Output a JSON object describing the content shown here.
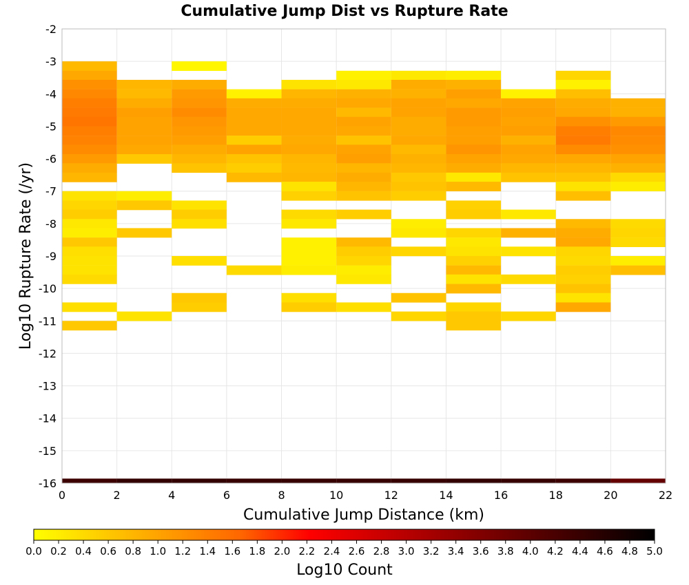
{
  "chart_data": {
    "type": "heatmap",
    "title": "Cumulative Jump Dist vs Rupture Rate",
    "xlabel": "Cumulative Jump Distance (km)",
    "ylabel": "Log10 Rupture Rate (/yr)",
    "xlim": [
      0,
      22
    ],
    "ylim": [
      -16,
      -2
    ],
    "x_ticks": [
      "0",
      "2",
      "4",
      "6",
      "8",
      "10",
      "12",
      "14",
      "16",
      "18",
      "20",
      "22"
    ],
    "y_ticks": [
      "-2",
      "-3",
      "-4",
      "-5",
      "-6",
      "-7",
      "-8",
      "-9",
      "-10",
      "-11",
      "-12",
      "-13",
      "-14",
      "-15",
      "-16"
    ],
    "bin_width_x": 2,
    "bin_height_y": 0.286,
    "colorbar": {
      "label": "Log10 Count",
      "range": [
        0,
        5
      ],
      "ticks": [
        "0.0",
        "0.2",
        "0.4",
        "0.6",
        "0.8",
        "1.0",
        "1.2",
        "1.4",
        "1.6",
        "1.8",
        "2.0",
        "2.2",
        "2.4",
        "2.6",
        "2.8",
        "3.0",
        "3.2",
        "3.4",
        "3.6",
        "3.8",
        "4.0",
        "4.2",
        "4.4",
        "4.6",
        "4.8",
        "5.0"
      ],
      "colormap": [
        "#ffff00",
        "#ffcc00",
        "#ff9900",
        "#ff6600",
        "#ff0000",
        "#cc0000",
        "#990000",
        "#660000",
        "#330000",
        "#000000"
      ]
    },
    "columns": [
      {
        "x0": 0,
        "rows": [
          {
            "y": -3.0,
            "v": 0.75
          },
          {
            "y": -3.29,
            "v": 0.95
          },
          {
            "y": -3.57,
            "v": 1.2
          },
          {
            "y": -3.86,
            "v": 1.3
          },
          {
            "y": -4.14,
            "v": 1.4
          },
          {
            "y": -4.43,
            "v": 1.45
          },
          {
            "y": -4.71,
            "v": 1.5
          },
          {
            "y": -5.0,
            "v": 1.4
          },
          {
            "y": -5.29,
            "v": 1.35
          },
          {
            "y": -5.57,
            "v": 1.25
          },
          {
            "y": -5.86,
            "v": 1.1
          },
          {
            "y": -6.14,
            "v": 0.9
          },
          {
            "y": -6.43,
            "v": 0.8
          },
          {
            "y": -7.0,
            "v": 0.3
          },
          {
            "y": -7.29,
            "v": 0.45
          },
          {
            "y": -7.57,
            "v": 0.55
          },
          {
            "y": -7.86,
            "v": 0.25
          },
          {
            "y": -8.14,
            "v": 0.2
          },
          {
            "y": -8.43,
            "v": 0.6
          },
          {
            "y": -8.71,
            "v": 0.35
          },
          {
            "y": -9.0,
            "v": 0.3
          },
          {
            "y": -9.29,
            "v": 0.3
          },
          {
            "y": -9.57,
            "v": 0.4
          },
          {
            "y": -10.43,
            "v": 0.35
          },
          {
            "y": -11.0,
            "v": 0.6
          }
        ]
      },
      {
        "x0": 2,
        "rows": [
          {
            "y": -3.57,
            "v": 0.8
          },
          {
            "y": -3.86,
            "v": 0.75
          },
          {
            "y": -4.14,
            "v": 0.9
          },
          {
            "y": -4.43,
            "v": 1.05
          },
          {
            "y": -4.71,
            "v": 1.0
          },
          {
            "y": -5.0,
            "v": 1.0
          },
          {
            "y": -5.29,
            "v": 1.0
          },
          {
            "y": -5.57,
            "v": 0.95
          },
          {
            "y": -5.86,
            "v": 0.6
          },
          {
            "y": -7.0,
            "v": 0.2
          },
          {
            "y": -7.29,
            "v": 0.6
          },
          {
            "y": -8.14,
            "v": 0.6
          },
          {
            "y": -10.71,
            "v": 0.3
          }
        ]
      },
      {
        "x0": 4,
        "rows": [
          {
            "y": -3.0,
            "v": 0.1
          },
          {
            "y": -3.57,
            "v": 0.9
          },
          {
            "y": -3.86,
            "v": 1.1
          },
          {
            "y": -4.14,
            "v": 1.15
          },
          {
            "y": -4.43,
            "v": 1.25
          },
          {
            "y": -4.71,
            "v": 1.15
          },
          {
            "y": -5.0,
            "v": 1.1
          },
          {
            "y": -5.29,
            "v": 1.05
          },
          {
            "y": -5.57,
            "v": 0.9
          },
          {
            "y": -5.86,
            "v": 0.8
          },
          {
            "y": -6.14,
            "v": 0.65
          },
          {
            "y": -7.29,
            "v": 0.3
          },
          {
            "y": -7.57,
            "v": 0.55
          },
          {
            "y": -7.86,
            "v": 0.35
          },
          {
            "y": -9.0,
            "v": 0.35
          },
          {
            "y": -10.14,
            "v": 0.6
          },
          {
            "y": -10.43,
            "v": 0.55
          }
        ]
      },
      {
        "x0": 6,
        "rows": [
          {
            "y": -3.86,
            "v": 0.15
          },
          {
            "y": -4.14,
            "v": 0.9
          },
          {
            "y": -4.43,
            "v": 0.95
          },
          {
            "y": -4.71,
            "v": 0.95
          },
          {
            "y": -5.0,
            "v": 0.95
          },
          {
            "y": -5.29,
            "v": 0.55
          },
          {
            "y": -5.57,
            "v": 1.0
          },
          {
            "y": -5.86,
            "v": 0.65
          },
          {
            "y": -6.14,
            "v": 0.55
          },
          {
            "y": -6.43,
            "v": 0.75
          },
          {
            "y": -9.29,
            "v": 0.4
          }
        ]
      },
      {
        "x0": 8,
        "rows": [
          {
            "y": -3.57,
            "v": 0.3
          },
          {
            "y": -3.86,
            "v": 0.8
          },
          {
            "y": -4.14,
            "v": 0.9
          },
          {
            "y": -4.43,
            "v": 0.95
          },
          {
            "y": -4.71,
            "v": 0.95
          },
          {
            "y": -5.0,
            "v": 0.95
          },
          {
            "y": -5.29,
            "v": 0.9
          },
          {
            "y": -5.57,
            "v": 0.95
          },
          {
            "y": -5.86,
            "v": 0.8
          },
          {
            "y": -6.14,
            "v": 0.75
          },
          {
            "y": -6.43,
            "v": 0.8
          },
          {
            "y": -6.71,
            "v": 0.3
          },
          {
            "y": -7.0,
            "v": 0.5
          },
          {
            "y": -7.57,
            "v": 0.4
          },
          {
            "y": -7.86,
            "v": 0.25
          },
          {
            "y": -8.43,
            "v": 0.15
          },
          {
            "y": -8.71,
            "v": 0.15
          },
          {
            "y": -9.0,
            "v": 0.15
          },
          {
            "y": -9.29,
            "v": 0.2
          },
          {
            "y": -10.14,
            "v": 0.35
          },
          {
            "y": -10.43,
            "v": 0.55
          }
        ]
      },
      {
        "x0": 10,
        "rows": [
          {
            "y": -3.29,
            "v": 0.15
          },
          {
            "y": -3.57,
            "v": 0.25
          },
          {
            "y": -3.86,
            "v": 0.85
          },
          {
            "y": -4.14,
            "v": 0.95
          },
          {
            "y": -4.43,
            "v": 0.75
          },
          {
            "y": -4.71,
            "v": 1.0
          },
          {
            "y": -5.0,
            "v": 0.95
          },
          {
            "y": -5.29,
            "v": 0.65
          },
          {
            "y": -5.57,
            "v": 1.0
          },
          {
            "y": -5.86,
            "v": 1.05
          },
          {
            "y": -6.14,
            "v": 0.8
          },
          {
            "y": -6.43,
            "v": 0.9
          },
          {
            "y": -6.71,
            "v": 0.8
          },
          {
            "y": -7.0,
            "v": 0.65
          },
          {
            "y": -7.57,
            "v": 0.55
          },
          {
            "y": -8.43,
            "v": 0.75
          },
          {
            "y": -8.71,
            "v": 0.55
          },
          {
            "y": -9.0,
            "v": 0.45
          },
          {
            "y": -9.29,
            "v": 0.2
          },
          {
            "y": -9.57,
            "v": 0.25
          },
          {
            "y": -10.43,
            "v": 0.35
          }
        ]
      },
      {
        "x0": 12,
        "rows": [
          {
            "y": -3.29,
            "v": 0.25
          },
          {
            "y": -3.57,
            "v": 0.9
          },
          {
            "y": -3.86,
            "v": 0.85
          },
          {
            "y": -4.14,
            "v": 1.0
          },
          {
            "y": -4.43,
            "v": 1.0
          },
          {
            "y": -4.71,
            "v": 0.9
          },
          {
            "y": -5.0,
            "v": 0.9
          },
          {
            "y": -5.29,
            "v": 0.95
          },
          {
            "y": -5.57,
            "v": 0.75
          },
          {
            "y": -5.86,
            "v": 0.85
          },
          {
            "y": -6.14,
            "v": 0.8
          },
          {
            "y": -6.43,
            "v": 0.6
          },
          {
            "y": -6.71,
            "v": 0.65
          },
          {
            "y": -7.0,
            "v": 0.55
          },
          {
            "y": -7.86,
            "v": 0.2
          },
          {
            "y": -8.14,
            "v": 0.25
          },
          {
            "y": -8.71,
            "v": 0.45
          },
          {
            "y": -10.14,
            "v": 0.65
          },
          {
            "y": -10.71,
            "v": 0.45
          }
        ]
      },
      {
        "x0": 14,
        "rows": [
          {
            "y": -3.29,
            "v": 0.2
          },
          {
            "y": -3.57,
            "v": 0.85
          },
          {
            "y": -3.86,
            "v": 1.05
          },
          {
            "y": -4.14,
            "v": 0.95
          },
          {
            "y": -4.43,
            "v": 1.1
          },
          {
            "y": -4.71,
            "v": 1.1
          },
          {
            "y": -5.0,
            "v": 1.05
          },
          {
            "y": -5.29,
            "v": 1.05
          },
          {
            "y": -5.57,
            "v": 1.15
          },
          {
            "y": -5.86,
            "v": 1.0
          },
          {
            "y": -6.14,
            "v": 0.9
          },
          {
            "y": -6.43,
            "v": 0.25
          },
          {
            "y": -6.71,
            "v": 0.75
          },
          {
            "y": -7.29,
            "v": 0.5
          },
          {
            "y": -7.57,
            "v": 0.55
          },
          {
            "y": -8.14,
            "v": 0.45
          },
          {
            "y": -8.43,
            "v": 0.25
          },
          {
            "y": -8.71,
            "v": 0.3
          },
          {
            "y": -9.0,
            "v": 0.5
          },
          {
            "y": -9.29,
            "v": 0.75
          },
          {
            "y": -9.57,
            "v": 0.3
          },
          {
            "y": -9.86,
            "v": 0.75
          },
          {
            "y": -10.43,
            "v": 0.45
          },
          {
            "y": -10.71,
            "v": 0.6
          },
          {
            "y": -11.0,
            "v": 0.6
          }
        ]
      },
      {
        "x0": 16,
        "rows": [
          {
            "y": -3.86,
            "v": 0.15
          },
          {
            "y": -4.14,
            "v": 1.0
          },
          {
            "y": -4.43,
            "v": 1.05
          },
          {
            "y": -4.71,
            "v": 1.0
          },
          {
            "y": -5.0,
            "v": 1.05
          },
          {
            "y": -5.29,
            "v": 0.85
          },
          {
            "y": -5.57,
            "v": 1.0
          },
          {
            "y": -5.86,
            "v": 0.95
          },
          {
            "y": -6.14,
            "v": 0.8
          },
          {
            "y": -6.43,
            "v": 0.65
          },
          {
            "y": -7.57,
            "v": 0.25
          },
          {
            "y": -8.14,
            "v": 0.85
          },
          {
            "y": -8.71,
            "v": 0.3
          },
          {
            "y": -9.57,
            "v": 0.4
          },
          {
            "y": -10.71,
            "v": 0.45
          }
        ]
      },
      {
        "x0": 18,
        "rows": [
          {
            "y": -3.29,
            "v": 0.45
          },
          {
            "y": -3.57,
            "v": 0.15
          },
          {
            "y": -3.86,
            "v": 0.7
          },
          {
            "y": -4.14,
            "v": 0.9
          },
          {
            "y": -4.43,
            "v": 0.95
          },
          {
            "y": -4.71,
            "v": 1.2
          },
          {
            "y": -5.0,
            "v": 1.4
          },
          {
            "y": -5.29,
            "v": 1.45
          },
          {
            "y": -5.57,
            "v": 1.25
          },
          {
            "y": -5.86,
            "v": 0.95
          },
          {
            "y": -6.14,
            "v": 0.8
          },
          {
            "y": -6.43,
            "v": 0.65
          },
          {
            "y": -6.71,
            "v": 0.3
          },
          {
            "y": -7.0,
            "v": 0.7
          },
          {
            "y": -7.86,
            "v": 0.75
          },
          {
            "y": -8.14,
            "v": 0.9
          },
          {
            "y": -8.43,
            "v": 0.95
          },
          {
            "y": -8.71,
            "v": 0.45
          },
          {
            "y": -9.0,
            "v": 0.4
          },
          {
            "y": -9.29,
            "v": 0.55
          },
          {
            "y": -9.57,
            "v": 0.5
          },
          {
            "y": -9.86,
            "v": 0.65
          },
          {
            "y": -10.14,
            "v": 0.3
          },
          {
            "y": -10.43,
            "v": 0.95
          }
        ]
      },
      {
        "x0": 20,
        "rows": [
          {
            "y": -4.14,
            "v": 0.85
          },
          {
            "y": -4.43,
            "v": 0.85
          },
          {
            "y": -4.71,
            "v": 1.1
          },
          {
            "y": -5.0,
            "v": 1.3
          },
          {
            "y": -5.29,
            "v": 1.25
          },
          {
            "y": -5.57,
            "v": 1.2
          },
          {
            "y": -5.86,
            "v": 1.0
          },
          {
            "y": -6.14,
            "v": 0.85
          },
          {
            "y": -6.43,
            "v": 0.4
          },
          {
            "y": -6.71,
            "v": 0.2
          },
          {
            "y": -7.86,
            "v": 0.4
          },
          {
            "y": -8.14,
            "v": 0.45
          },
          {
            "y": -8.43,
            "v": 0.4
          },
          {
            "y": -9.0,
            "v": 0.2
          },
          {
            "y": -9.29,
            "v": 0.7
          }
        ]
      }
    ],
    "bottom_row": {
      "y": -16.0,
      "values": [
        4.35,
        4.45,
        4.45,
        4.4,
        4.4,
        4.4,
        4.4,
        4.45,
        4.4,
        4.35,
        3.9
      ]
    }
  }
}
